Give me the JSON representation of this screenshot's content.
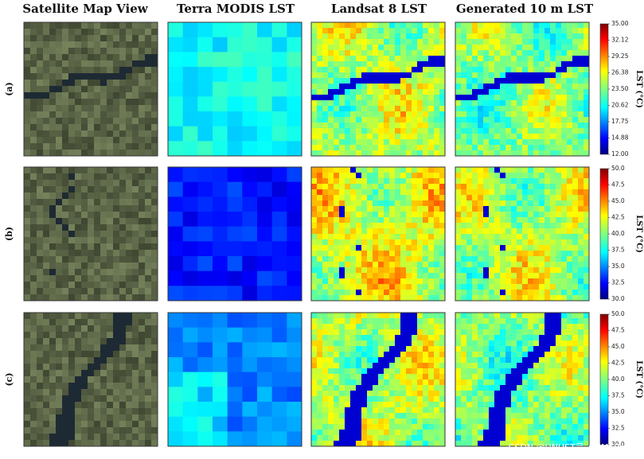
{
  "columns": [
    "Satellite Map View",
    "Terra MODIS LST",
    "Landsat 8 LST",
    "Generated 10 m LST"
  ],
  "rows": [
    {
      "label": "(a)",
      "colorbar": {
        "label": "LST (°C)",
        "lim": [
          12,
          35
        ],
        "ticks": [
          {
            "value": 12,
            "label": "12.00"
          },
          {
            "value": 14.88,
            "label": "14.88"
          },
          {
            "value": 17.75,
            "label": "17.75"
          },
          {
            "value": 20.62,
            "label": "20.62"
          },
          {
            "value": 23.5,
            "label": "23.50"
          },
          {
            "value": 26.38,
            "label": "26.38"
          },
          {
            "value": 29.25,
            "label": "29.25"
          },
          {
            "value": 32.12,
            "label": "32.12"
          },
          {
            "value": 35,
            "label": "35.00"
          }
        ]
      }
    },
    {
      "label": "(b)",
      "colorbar": {
        "label": "LST (°C)",
        "lim": [
          30,
          50
        ],
        "ticks": [
          {
            "value": 30,
            "label": "30.0"
          },
          {
            "value": 32.5,
            "label": "32.5"
          },
          {
            "value": 35,
            "label": "35.0"
          },
          {
            "value": 37.5,
            "label": "37.5"
          },
          {
            "value": 40,
            "label": "40.0"
          },
          {
            "value": 42.5,
            "label": "42.5"
          },
          {
            "value": 45,
            "label": "45.0"
          },
          {
            "value": 47.5,
            "label": "47.5"
          },
          {
            "value": 50,
            "label": "50.0"
          }
        ]
      }
    },
    {
      "label": "(c)",
      "colorbar": {
        "label": "LST (°C)",
        "lim": [
          30,
          50
        ],
        "ticks": [
          {
            "value": 30,
            "label": "30.0"
          },
          {
            "value": 32.5,
            "label": "32.5"
          },
          {
            "value": 35,
            "label": "35.0"
          },
          {
            "value": 37.5,
            "label": "37.5"
          },
          {
            "value": 40,
            "label": "40.0"
          },
          {
            "value": 42.5,
            "label": "42.5"
          },
          {
            "value": 45,
            "label": "45.0"
          },
          {
            "value": 47.5,
            "label": "47.5"
          },
          {
            "value": 50,
            "label": "50.0"
          }
        ]
      }
    }
  ],
  "watermark": "CSDN @HNUST吴_CUMTBer"
}
